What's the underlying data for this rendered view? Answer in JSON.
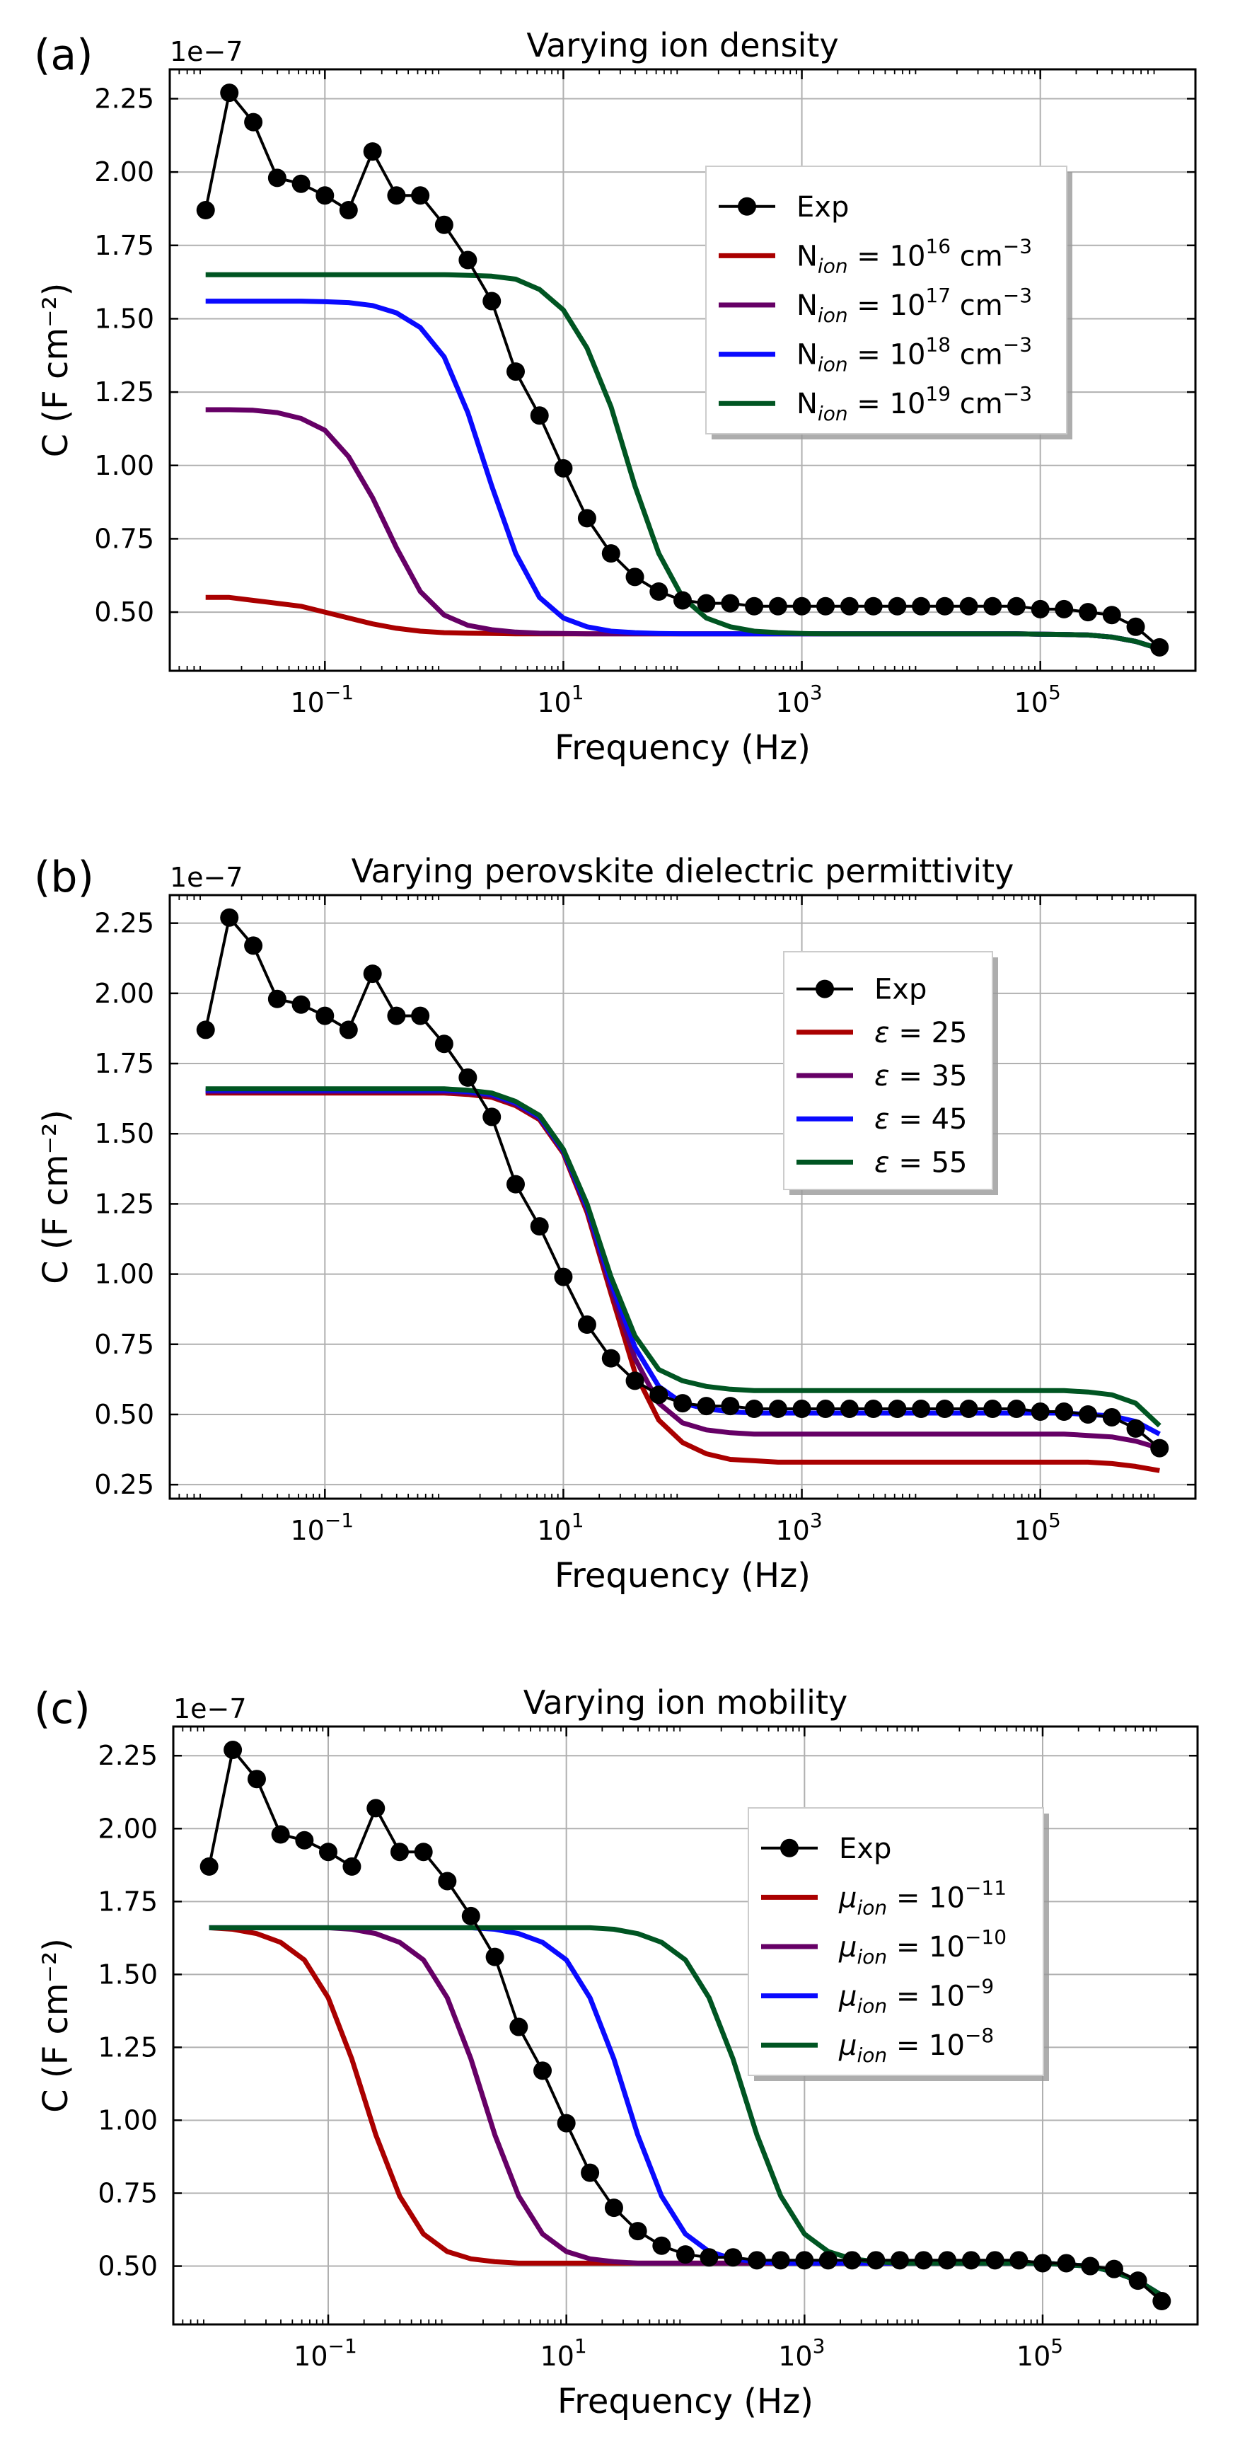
{
  "chart_data": [
    {
      "panel": "(a)",
      "type": "line",
      "title": "Varying ion density",
      "xlabel": "Frequency (Hz)",
      "ylabel": "C (F cm⁻²)",
      "y_multiplier": "1e−7",
      "xscale": "log",
      "xlim": [
        0.005,
        2000000
      ],
      "ylim": [
        0.3,
        2.35
      ],
      "xticks": [
        {
          "v": 0.1,
          "base": "10",
          "exp": "−1"
        },
        {
          "v": 10,
          "base": "10",
          "exp": "1"
        },
        {
          "v": 1000,
          "base": "10",
          "exp": "3"
        },
        {
          "v": 100000,
          "base": "10",
          "exp": "5"
        }
      ],
      "yticks": [
        "0.50",
        "0.75",
        "1.00",
        "1.25",
        "1.50",
        "1.75",
        "2.00",
        "2.25"
      ],
      "grid": true,
      "legend_placement": "upper right",
      "x": [
        0.01,
        0.0158,
        0.0251,
        0.0398,
        0.0631,
        0.1,
        0.158,
        0.251,
        0.398,
        0.631,
        1,
        1.58,
        2.51,
        3.98,
        6.31,
        10,
        15.8,
        25.1,
        39.8,
        63.1,
        100,
        158,
        251,
        398,
        631,
        1000,
        1580,
        2510,
        3980,
        6310,
        10000,
        15800,
        25100,
        39800,
        63100,
        100000,
        158000,
        251000,
        398000,
        631000,
        1000000
      ],
      "series": [
        {
          "name": "Exp",
          "label": "Exp",
          "color": "#000000",
          "marker": true,
          "values": [
            1.87,
            2.27,
            2.17,
            1.98,
            1.96,
            1.92,
            1.87,
            2.07,
            1.92,
            1.92,
            1.82,
            1.7,
            1.56,
            1.32,
            1.17,
            0.99,
            0.82,
            0.7,
            0.62,
            0.57,
            0.54,
            0.53,
            0.53,
            0.52,
            0.52,
            0.52,
            0.52,
            0.52,
            0.52,
            0.52,
            0.52,
            0.52,
            0.52,
            0.52,
            0.52,
            0.51,
            0.51,
            0.5,
            0.49,
            0.45,
            0.38
          ]
        },
        {
          "name": "N_ion = 10^16 cm^-3",
          "label": {
            "pre": "N",
            "sub": "ion",
            "mid": " = 10",
            "sup": "16",
            "post": " cm",
            "sup2": "−3"
          },
          "color": "#aa0000",
          "marker": false,
          "values": [
            0.55,
            0.55,
            0.54,
            0.53,
            0.52,
            0.5,
            0.48,
            0.46,
            0.445,
            0.435,
            0.43,
            0.428,
            0.427,
            0.426,
            0.426,
            0.426,
            0.426,
            0.426,
            0.426,
            0.426,
            0.426,
            0.426,
            0.426,
            0.426,
            0.426,
            0.426,
            0.426,
            0.426,
            0.426,
            0.426,
            0.426,
            0.426,
            0.426,
            0.426,
            0.426,
            0.425,
            0.424,
            0.422,
            0.415,
            0.4,
            0.375
          ]
        },
        {
          "name": "N_ion = 10^17 cm^-3",
          "label": {
            "pre": "N",
            "sub": "ion",
            "mid": " = 10",
            "sup": "17",
            "post": " cm",
            "sup2": "−3"
          },
          "color": "#660066",
          "marker": false,
          "values": [
            1.19,
            1.19,
            1.188,
            1.18,
            1.16,
            1.12,
            1.03,
            0.89,
            0.72,
            0.57,
            0.49,
            0.455,
            0.44,
            0.432,
            0.428,
            0.427,
            0.426,
            0.426,
            0.426,
            0.426,
            0.426,
            0.426,
            0.426,
            0.426,
            0.426,
            0.426,
            0.426,
            0.426,
            0.426,
            0.426,
            0.426,
            0.426,
            0.426,
            0.426,
            0.426,
            0.425,
            0.424,
            0.422,
            0.415,
            0.4,
            0.375
          ]
        },
        {
          "name": "N_ion = 10^18 cm^-3",
          "label": {
            "pre": "N",
            "sub": "ion",
            "mid": " = 10",
            "sup": "18",
            "post": " cm",
            "sup2": "−3"
          },
          "color": "#0a0aff",
          "marker": false,
          "values": [
            1.56,
            1.56,
            1.56,
            1.56,
            1.56,
            1.558,
            1.555,
            1.545,
            1.52,
            1.47,
            1.37,
            1.18,
            0.93,
            0.7,
            0.55,
            0.48,
            0.45,
            0.435,
            0.43,
            0.427,
            0.426,
            0.426,
            0.426,
            0.426,
            0.426,
            0.426,
            0.426,
            0.426,
            0.426,
            0.426,
            0.426,
            0.426,
            0.426,
            0.426,
            0.426,
            0.425,
            0.424,
            0.422,
            0.415,
            0.4,
            0.375
          ]
        },
        {
          "name": "N_ion = 10^19 cm^-3",
          "label": {
            "pre": "N",
            "sub": "ion",
            "mid": " = 10",
            "sup": "19",
            "post": " cm",
            "sup2": "−3"
          },
          "color": "#005522",
          "marker": false,
          "values": [
            1.65,
            1.65,
            1.65,
            1.65,
            1.65,
            1.65,
            1.65,
            1.65,
            1.65,
            1.65,
            1.65,
            1.648,
            1.645,
            1.635,
            1.6,
            1.53,
            1.4,
            1.2,
            0.93,
            0.7,
            0.55,
            0.48,
            0.45,
            0.435,
            0.43,
            0.427,
            0.426,
            0.426,
            0.426,
            0.426,
            0.426,
            0.426,
            0.426,
            0.426,
            0.426,
            0.425,
            0.424,
            0.422,
            0.415,
            0.4,
            0.375
          ]
        }
      ]
    },
    {
      "panel": "(b)",
      "type": "line",
      "title": "Varying perovskite dielectric permittivity",
      "xlabel": "Frequency (Hz)",
      "ylabel": "C (F cm⁻²)",
      "y_multiplier": "1e−7",
      "xscale": "log",
      "xlim": [
        0.005,
        2000000
      ],
      "ylim": [
        0.2,
        2.35
      ],
      "xticks": [
        {
          "v": 0.1,
          "base": "10",
          "exp": "−1"
        },
        {
          "v": 10,
          "base": "10",
          "exp": "1"
        },
        {
          "v": 1000,
          "base": "10",
          "exp": "3"
        },
        {
          "v": 100000,
          "base": "10",
          "exp": "5"
        }
      ],
      "yticks": [
        "0.25",
        "0.50",
        "0.75",
        "1.00",
        "1.25",
        "1.50",
        "1.75",
        "2.00",
        "2.25"
      ],
      "grid": true,
      "legend_placement": "upper right",
      "x": [
        0.01,
        0.0158,
        0.0251,
        0.0398,
        0.0631,
        0.1,
        0.158,
        0.251,
        0.398,
        0.631,
        1,
        1.58,
        2.51,
        3.98,
        6.31,
        10,
        15.8,
        25.1,
        39.8,
        63.1,
        100,
        158,
        251,
        398,
        631,
        1000,
        1580,
        2510,
        3980,
        6310,
        10000,
        15800,
        25100,
        39800,
        63100,
        100000,
        158000,
        251000,
        398000,
        631000,
        1000000
      ],
      "series": [
        {
          "name": "Exp",
          "label": "Exp",
          "color": "#000000",
          "marker": true,
          "values": [
            1.87,
            2.27,
            2.17,
            1.98,
            1.96,
            1.92,
            1.87,
            2.07,
            1.92,
            1.92,
            1.82,
            1.7,
            1.56,
            1.32,
            1.17,
            0.99,
            0.82,
            0.7,
            0.62,
            0.57,
            0.54,
            0.53,
            0.53,
            0.52,
            0.52,
            0.52,
            0.52,
            0.52,
            0.52,
            0.52,
            0.52,
            0.52,
            0.52,
            0.52,
            0.52,
            0.51,
            0.51,
            0.5,
            0.49,
            0.45,
            0.38
          ]
        },
        {
          "name": "ε = 25",
          "label": {
            "greek": "ε",
            "post": " = 25"
          },
          "color": "#aa0000",
          "marker": false,
          "values": [
            1.645,
            1.645,
            1.645,
            1.645,
            1.645,
            1.645,
            1.645,
            1.645,
            1.645,
            1.645,
            1.645,
            1.64,
            1.63,
            1.6,
            1.55,
            1.43,
            1.22,
            0.93,
            0.65,
            0.48,
            0.4,
            0.36,
            0.34,
            0.335,
            0.33,
            0.33,
            0.33,
            0.33,
            0.33,
            0.33,
            0.33,
            0.33,
            0.33,
            0.33,
            0.33,
            0.33,
            0.33,
            0.33,
            0.325,
            0.315,
            0.3
          ]
        },
        {
          "name": "ε = 35",
          "label": {
            "greek": "ε",
            "post": " = 35"
          },
          "color": "#660066",
          "marker": false,
          "values": [
            1.65,
            1.65,
            1.65,
            1.65,
            1.65,
            1.65,
            1.65,
            1.65,
            1.65,
            1.65,
            1.65,
            1.645,
            1.635,
            1.605,
            1.555,
            1.435,
            1.23,
            0.95,
            0.7,
            0.54,
            0.47,
            0.445,
            0.435,
            0.43,
            0.43,
            0.43,
            0.43,
            0.43,
            0.43,
            0.43,
            0.43,
            0.43,
            0.43,
            0.43,
            0.43,
            0.43,
            0.43,
            0.425,
            0.42,
            0.405,
            0.38
          ]
        },
        {
          "name": "ε = 45",
          "label": {
            "greek": "ε",
            "post": " = 45"
          },
          "color": "#0a0aff",
          "marker": false,
          "values": [
            1.655,
            1.655,
            1.655,
            1.655,
            1.655,
            1.655,
            1.655,
            1.655,
            1.655,
            1.655,
            1.655,
            1.65,
            1.64,
            1.61,
            1.56,
            1.44,
            1.24,
            0.97,
            0.74,
            0.6,
            0.54,
            0.52,
            0.51,
            0.505,
            0.505,
            0.505,
            0.505,
            0.505,
            0.505,
            0.505,
            0.505,
            0.505,
            0.505,
            0.505,
            0.505,
            0.505,
            0.505,
            0.5,
            0.495,
            0.475,
            0.43
          ]
        },
        {
          "name": "ε = 55",
          "label": {
            "greek": "ε",
            "post": " = 55"
          },
          "color": "#005522",
          "marker": false,
          "values": [
            1.66,
            1.66,
            1.66,
            1.66,
            1.66,
            1.66,
            1.66,
            1.66,
            1.66,
            1.66,
            1.66,
            1.655,
            1.645,
            1.615,
            1.565,
            1.445,
            1.25,
            0.99,
            0.78,
            0.66,
            0.62,
            0.6,
            0.59,
            0.585,
            0.585,
            0.585,
            0.585,
            0.585,
            0.585,
            0.585,
            0.585,
            0.585,
            0.585,
            0.585,
            0.585,
            0.585,
            0.585,
            0.58,
            0.57,
            0.54,
            0.46
          ]
        }
      ]
    },
    {
      "panel": "(c)",
      "type": "line",
      "title": "Varying ion mobility",
      "xlabel": "Frequency (Hz)",
      "ylabel": "C (F cm⁻²)",
      "y_multiplier": "1e−7",
      "xscale": "log",
      "xlim": [
        0.005,
        2000000
      ],
      "ylim": [
        0.3,
        2.35
      ],
      "xticks": [
        {
          "v": 0.1,
          "base": "10",
          "exp": "−1"
        },
        {
          "v": 10,
          "base": "10",
          "exp": "1"
        },
        {
          "v": 1000,
          "base": "10",
          "exp": "3"
        },
        {
          "v": 100000,
          "base": "10",
          "exp": "5"
        }
      ],
      "yticks": [
        "0.50",
        "0.75",
        "1.00",
        "1.25",
        "1.50",
        "1.75",
        "2.00",
        "2.25"
      ],
      "grid": true,
      "legend_placement": "upper right",
      "x": [
        0.01,
        0.0158,
        0.0251,
        0.0398,
        0.0631,
        0.1,
        0.158,
        0.251,
        0.398,
        0.631,
        1,
        1.58,
        2.51,
        3.98,
        6.31,
        10,
        15.8,
        25.1,
        39.8,
        63.1,
        100,
        158,
        251,
        398,
        631,
        1000,
        1580,
        2510,
        3980,
        6310,
        10000,
        15800,
        25100,
        39800,
        63100,
        100000,
        158000,
        251000,
        398000,
        631000,
        1000000
      ],
      "series": [
        {
          "name": "Exp",
          "label": "Exp",
          "color": "#000000",
          "marker": true,
          "values": [
            1.87,
            2.27,
            2.17,
            1.98,
            1.96,
            1.92,
            1.87,
            2.07,
            1.92,
            1.92,
            1.82,
            1.7,
            1.56,
            1.32,
            1.17,
            0.99,
            0.82,
            0.7,
            0.62,
            0.57,
            0.54,
            0.53,
            0.53,
            0.52,
            0.52,
            0.52,
            0.52,
            0.52,
            0.52,
            0.52,
            0.52,
            0.52,
            0.52,
            0.52,
            0.52,
            0.51,
            0.51,
            0.5,
            0.49,
            0.45,
            0.38
          ]
        },
        {
          "name": "μ_ion = 10^-11",
          "label": {
            "greek": "μ",
            "sub": "ion",
            "mid": " = 10",
            "sup": "−11"
          },
          "color": "#aa0000",
          "marker": false,
          "values": [
            1.66,
            1.655,
            1.64,
            1.61,
            1.55,
            1.42,
            1.21,
            0.95,
            0.74,
            0.61,
            0.55,
            0.525,
            0.515,
            0.51,
            0.51,
            0.51,
            0.51,
            0.51,
            0.51,
            0.51,
            0.51,
            0.51,
            0.51,
            0.51,
            0.51,
            0.51,
            0.51,
            0.51,
            0.51,
            0.51,
            0.51,
            0.51,
            0.51,
            0.51,
            0.51,
            0.51,
            0.505,
            0.5,
            0.48,
            0.45,
            0.4
          ]
        },
        {
          "name": "μ_ion = 10^-10",
          "label": {
            "greek": "μ",
            "sub": "ion",
            "mid": " = 10",
            "sup": "−10"
          },
          "color": "#660066",
          "marker": false,
          "values": [
            1.66,
            1.66,
            1.66,
            1.66,
            1.66,
            1.66,
            1.655,
            1.64,
            1.61,
            1.55,
            1.42,
            1.21,
            0.95,
            0.74,
            0.61,
            0.55,
            0.525,
            0.515,
            0.51,
            0.51,
            0.51,
            0.51,
            0.51,
            0.51,
            0.51,
            0.51,
            0.51,
            0.51,
            0.51,
            0.51,
            0.51,
            0.51,
            0.51,
            0.51,
            0.51,
            0.51,
            0.505,
            0.5,
            0.48,
            0.45,
            0.4
          ]
        },
        {
          "name": "μ_ion = 10^-9",
          "label": {
            "greek": "μ",
            "sub": "ion",
            "mid": " = 10",
            "sup": "−9"
          },
          "color": "#0a0aff",
          "marker": false,
          "values": [
            1.66,
            1.66,
            1.66,
            1.66,
            1.66,
            1.66,
            1.66,
            1.66,
            1.66,
            1.66,
            1.66,
            1.66,
            1.655,
            1.64,
            1.61,
            1.55,
            1.42,
            1.21,
            0.95,
            0.74,
            0.61,
            0.55,
            0.525,
            0.515,
            0.51,
            0.51,
            0.51,
            0.51,
            0.51,
            0.51,
            0.51,
            0.51,
            0.51,
            0.51,
            0.51,
            0.51,
            0.505,
            0.5,
            0.48,
            0.45,
            0.4
          ]
        },
        {
          "name": "μ_ion = 10^-8",
          "label": {
            "greek": "μ",
            "sub": "ion",
            "mid": " = 10",
            "sup": "−8"
          },
          "color": "#005522",
          "marker": false,
          "values": [
            1.66,
            1.66,
            1.66,
            1.66,
            1.66,
            1.66,
            1.66,
            1.66,
            1.66,
            1.66,
            1.66,
            1.66,
            1.66,
            1.66,
            1.66,
            1.66,
            1.66,
            1.655,
            1.64,
            1.61,
            1.55,
            1.42,
            1.21,
            0.95,
            0.74,
            0.61,
            0.55,
            0.525,
            0.515,
            0.51,
            0.51,
            0.51,
            0.51,
            0.51,
            0.51,
            0.51,
            0.505,
            0.5,
            0.48,
            0.45,
            0.4
          ]
        }
      ]
    }
  ]
}
